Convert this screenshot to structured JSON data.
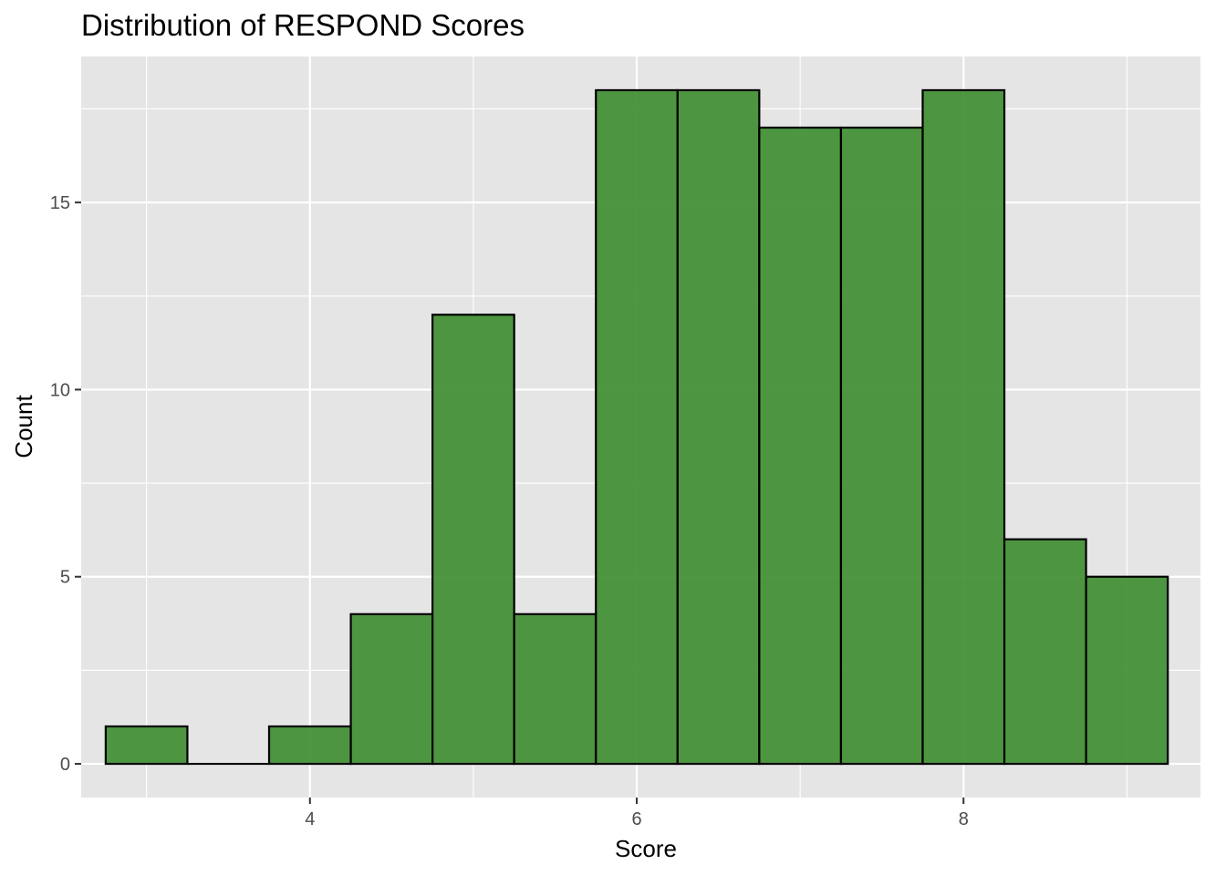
{
  "chart_data": {
    "type": "bar",
    "title": "Distribution of RESPOND Scores",
    "xlabel": "Score",
    "ylabel": "Count",
    "bin_width": 0.5,
    "bins": [
      {
        "center": 3.0,
        "count": 1
      },
      {
        "center": 3.5,
        "count": 0
      },
      {
        "center": 4.0,
        "count": 1
      },
      {
        "center": 4.5,
        "count": 4
      },
      {
        "center": 5.0,
        "count": 12
      },
      {
        "center": 5.5,
        "count": 4
      },
      {
        "center": 6.0,
        "count": 18
      },
      {
        "center": 6.5,
        "count": 18
      },
      {
        "center": 7.0,
        "count": 17
      },
      {
        "center": 7.5,
        "count": 17
      },
      {
        "center": 8.0,
        "count": 18
      },
      {
        "center": 8.5,
        "count": 6
      },
      {
        "center": 9.0,
        "count": 5
      }
    ],
    "xlim": [
      2.6,
      9.45
    ],
    "ylim": [
      -0.9,
      18.9
    ],
    "x_ticks": [
      4,
      6,
      8
    ],
    "x_minor_ticks": [
      3,
      5,
      7,
      9
    ],
    "y_ticks": [
      0,
      5,
      10,
      15
    ],
    "y_minor_ticks": [
      2.5,
      7.5,
      12.5,
      17.5
    ],
    "grid": true,
    "legend": "none",
    "colors": {
      "panel_background": "#e5e5e5",
      "grid": "#ffffff",
      "bar_fill": "#3c8c2f",
      "bar_outline": "#000000",
      "tick_label": "#4d4d4d"
    }
  }
}
